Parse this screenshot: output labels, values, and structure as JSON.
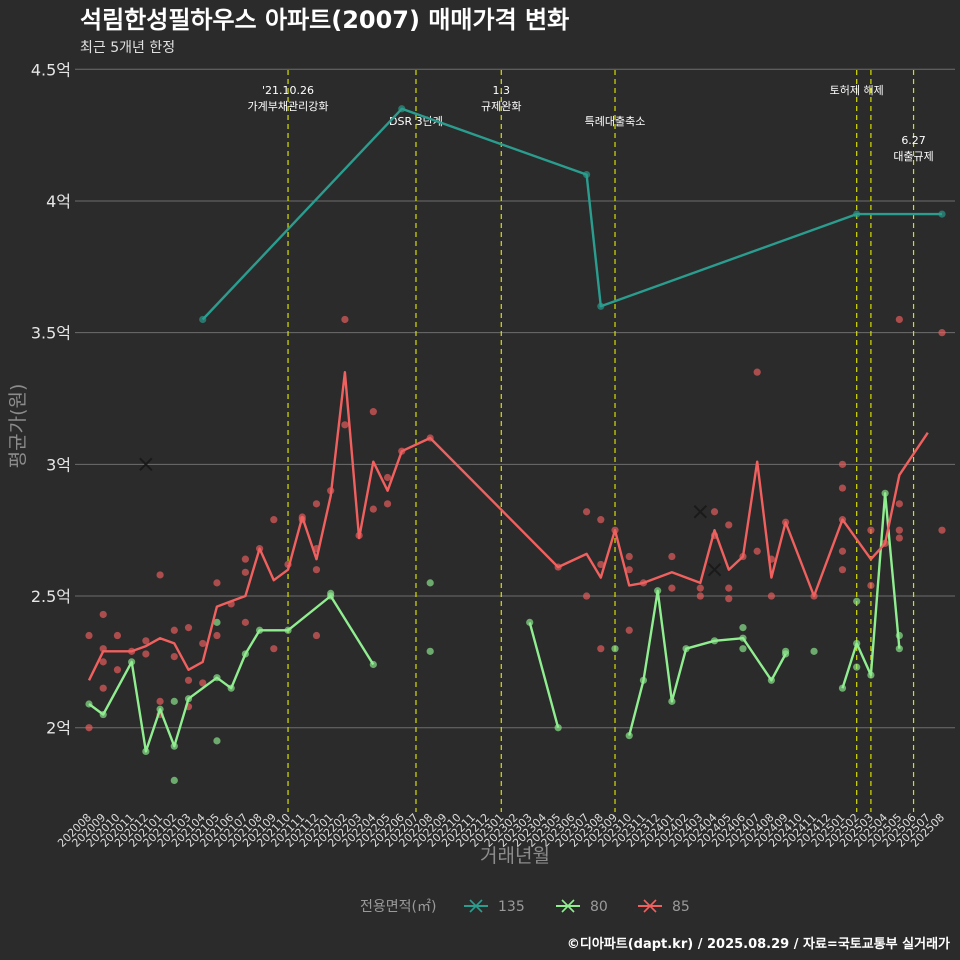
{
  "header": {
    "title": "석림한성필하우스 아파트(2007) 매매가격 변화",
    "subtitle": "최근 5개년 한정"
  },
  "caption": "©디아파트(dapt.kr) / 2025.08.29 / 자료=국토교통부 실거래가",
  "colors": {
    "background": "#2b2b2b",
    "grid": "#6e6e6e",
    "event_line": "#d6e000",
    "s135": "#2a9d8f",
    "s80": "#90ee90",
    "s85": "#f0605f"
  },
  "chart_data": {
    "type": "line",
    "xlabel": "거래년월",
    "ylabel": "평균가(원)",
    "ylim": [
      1.68,
      4.52
    ],
    "yticks": [
      {
        "v": 2.0,
        "label": "2억"
      },
      {
        "v": 2.5,
        "label": "2.5억"
      },
      {
        "v": 3.0,
        "label": "3억"
      },
      {
        "v": 3.5,
        "label": "3.5억"
      },
      {
        "v": 4.0,
        "label": "4억"
      },
      {
        "v": 4.5,
        "label": "4.5억"
      }
    ],
    "categories": [
      "202008",
      "202009",
      "202010",
      "202011",
      "202012",
      "202101",
      "202102",
      "202103",
      "202104",
      "202105",
      "202106",
      "202107",
      "202108",
      "202109",
      "202110",
      "202111",
      "202112",
      "202201",
      "202202",
      "202203",
      "202204",
      "202205",
      "202206",
      "202207",
      "202208",
      "202209",
      "202210",
      "202211",
      "202212",
      "202301",
      "202302",
      "202303",
      "202304",
      "202305",
      "202306",
      "202307",
      "202308",
      "202309",
      "202310",
      "202311",
      "202312",
      "202401",
      "202402",
      "202403",
      "202404",
      "202405",
      "202406",
      "202407",
      "202408",
      "202409",
      "202410",
      "202411",
      "202412",
      "202501",
      "202502",
      "202503",
      "202504",
      "202505",
      "202506",
      "202507",
      "202508"
    ],
    "events": [
      {
        "date": "202110",
        "label": [
          "'21.10.26",
          "가계부채관리강화"
        ],
        "row": 0
      },
      {
        "date": "202207",
        "label": [
          "DSR 3단계"
        ],
        "row": 1
      },
      {
        "date": "202301",
        "label": [
          "1.3",
          "규제완화"
        ],
        "row": 0
      },
      {
        "date": "202309",
        "label": [
          "특례대출축소"
        ],
        "row": 1
      },
      {
        "date": "202502",
        "label": [
          "토허제 해제"
        ],
        "row": 0
      },
      {
        "date": "202503",
        "label": [],
        "row": 0
      },
      {
        "date": "202506",
        "label": [
          "6.27",
          "대출규제"
        ],
        "row": 2
      }
    ],
    "series": [
      {
        "name": "135",
        "color": "#2a9d8f",
        "line": [
          [
            "202104",
            3.55
          ],
          [
            "202206",
            4.35
          ],
          [
            "202307",
            4.1
          ],
          [
            "202308",
            3.6
          ],
          [
            "202502",
            3.95
          ],
          [
            "202508",
            3.95
          ]
        ],
        "points": [
          [
            "202104",
            3.55
          ],
          [
            "202206",
            4.35
          ],
          [
            "202307",
            4.1
          ],
          [
            "202308",
            3.6
          ],
          [
            "202502",
            3.95
          ],
          [
            "202508",
            3.95
          ]
        ],
        "crosses": []
      },
      {
        "name": "80",
        "color": "#90ee90",
        "line": [
          [
            [
              "202008",
              2.09
            ],
            [
              "202009",
              2.05
            ],
            [
              "202011",
              2.25
            ],
            [
              "202012",
              1.91
            ],
            [
              "202101",
              2.07
            ],
            [
              "202102",
              1.93
            ],
            [
              "202103",
              2.11
            ],
            [
              "202105",
              2.19
            ],
            [
              "202106",
              2.15
            ],
            [
              "202107",
              2.28
            ],
            [
              "202108",
              2.37
            ],
            [
              "202110",
              2.37
            ],
            [
              "202201",
              2.5
            ],
            [
              "202204",
              2.24
            ]
          ],
          [
            [
              "202303",
              2.4
            ],
            [
              "202305",
              2.0
            ]
          ],
          [
            [
              "202310",
              1.97
            ],
            [
              "202311",
              2.18
            ],
            [
              "202312",
              2.52
            ],
            [
              "202401",
              2.1
            ],
            [
              "202402",
              2.3
            ],
            [
              "202404",
              2.33
            ],
            [
              "202406",
              2.34
            ],
            [
              "202408",
              2.18
            ],
            [
              "202409",
              2.28
            ]
          ],
          [
            [
              "202501",
              2.15
            ],
            [
              "202502",
              2.32
            ],
            [
              "202503",
              2.2
            ],
            [
              "202504",
              2.89
            ],
            [
              "202505",
              2.3
            ]
          ]
        ],
        "points": [
          [
            "202008",
            2.09
          ],
          [
            "202009",
            2.05
          ],
          [
            "202011",
            2.25
          ],
          [
            "202012",
            1.91
          ],
          [
            "202101",
            2.07
          ],
          [
            "202102",
            1.93
          ],
          [
            "202102",
            2.1
          ],
          [
            "202102",
            1.8
          ],
          [
            "202103",
            2.11
          ],
          [
            "202105",
            2.19
          ],
          [
            "202105",
            2.4
          ],
          [
            "202105",
            1.95
          ],
          [
            "202106",
            2.15
          ],
          [
            "202107",
            2.28
          ],
          [
            "202108",
            2.37
          ],
          [
            "202110",
            2.37
          ],
          [
            "202201",
            2.5
          ],
          [
            "202201",
            2.51
          ],
          [
            "202204",
            2.24
          ],
          [
            "202208",
            2.55
          ],
          [
            "202208",
            2.29
          ],
          [
            "202303",
            2.4
          ],
          [
            "202305",
            2.0
          ],
          [
            "202309",
            2.3
          ],
          [
            "202310",
            1.97
          ],
          [
            "202311",
            2.18
          ],
          [
            "202312",
            2.52
          ],
          [
            "202401",
            2.1
          ],
          [
            "202402",
            2.3
          ],
          [
            "202404",
            2.33
          ],
          [
            "202406",
            2.34
          ],
          [
            "202406",
            2.38
          ],
          [
            "202406",
            2.3
          ],
          [
            "202408",
            2.18
          ],
          [
            "202409",
            2.28
          ],
          [
            "202409",
            2.29
          ],
          [
            "202411",
            2.29
          ],
          [
            "202501",
            2.15
          ],
          [
            "202502",
            2.32
          ],
          [
            "202502",
            2.48
          ],
          [
            "202502",
            2.23
          ],
          [
            "202503",
            2.2
          ],
          [
            "202504",
            2.89
          ],
          [
            "202505",
            2.3
          ],
          [
            "202505",
            2.35
          ]
        ],
        "crosses": []
      },
      {
        "name": "85",
        "color": "#f0605f",
        "line": [
          [
            [
              "202008",
              2.18
            ],
            [
              "202009",
              2.29
            ],
            [
              "202010",
              2.29
            ],
            [
              "202011",
              2.29
            ],
            [
              "202012",
              2.31
            ],
            [
              "202101",
              2.34
            ],
            [
              "202102",
              2.32
            ],
            [
              "202103",
              2.22
            ],
            [
              "202104",
              2.25
            ],
            [
              "202105",
              2.46
            ],
            [
              "202106",
              2.48
            ],
            [
              "202107",
              2.5
            ],
            [
              "202108",
              2.68
            ],
            [
              "202109",
              2.56
            ],
            [
              "202110",
              2.6
            ],
            [
              "202111",
              2.8
            ],
            [
              "202112",
              2.64
            ],
            [
              "202201",
              2.88
            ],
            [
              "202202",
              3.35
            ],
            [
              "202203",
              2.72
            ],
            [
              "202204",
              3.01
            ],
            [
              "202205",
              2.9
            ],
            [
              "202206",
              3.05
            ],
            [
              "202208",
              3.1
            ],
            [
              "202305",
              2.61
            ],
            [
              "202307",
              2.66
            ],
            [
              "202308",
              2.57
            ],
            [
              "202309",
              2.75
            ],
            [
              "202310",
              2.54
            ],
            [
              "202311",
              2.55
            ],
            [
              "202401",
              2.59
            ],
            [
              "202403",
              2.55
            ],
            [
              "202404",
              2.75
            ],
            [
              "202405",
              2.6
            ],
            [
              "202406",
              2.65
            ],
            [
              "202407",
              3.01
            ],
            [
              "202408",
              2.57
            ],
            [
              "202409",
              2.78
            ],
            [
              "202411",
              2.5
            ],
            [
              "202501",
              2.79
            ],
            [
              "202503",
              2.64
            ],
            [
              "202504",
              2.7
            ],
            [
              "202505",
              2.96
            ],
            [
              "202507",
              3.12
            ]
          ]
        ],
        "points": [
          [
            "202008",
            2.35
          ],
          [
            "202008",
            2.0
          ],
          [
            "202009",
            2.43
          ],
          [
            "202009",
            2.3
          ],
          [
            "202009",
            2.25
          ],
          [
            "202009",
            2.15
          ],
          [
            "202010",
            2.35
          ],
          [
            "202010",
            2.22
          ],
          [
            "202011",
            2.29
          ],
          [
            "202012",
            2.33
          ],
          [
            "202012",
            2.28
          ],
          [
            "202101",
            2.58
          ],
          [
            "202101",
            2.1
          ],
          [
            "202101",
            2.05
          ],
          [
            "202102",
            2.37
          ],
          [
            "202102",
            2.27
          ],
          [
            "202103",
            2.38
          ],
          [
            "202103",
            2.18
          ],
          [
            "202103",
            2.08
          ],
          [
            "202104",
            2.17
          ],
          [
            "202104",
            2.32
          ],
          [
            "202105",
            2.55
          ],
          [
            "202105",
            2.35
          ],
          [
            "202106",
            2.47
          ],
          [
            "202107",
            2.64
          ],
          [
            "202107",
            2.59
          ],
          [
            "202107",
            2.4
          ],
          [
            "202108",
            2.68
          ],
          [
            "202109",
            2.79
          ],
          [
            "202109",
            2.3
          ],
          [
            "202110",
            2.62
          ],
          [
            "202111",
            2.8
          ],
          [
            "202111",
            2.79
          ],
          [
            "202112",
            2.85
          ],
          [
            "202112",
            2.68
          ],
          [
            "202112",
            2.6
          ],
          [
            "202112",
            2.35
          ],
          [
            "202201",
            2.9
          ],
          [
            "202202",
            3.55
          ],
          [
            "202202",
            3.15
          ],
          [
            "202203",
            2.73
          ],
          [
            "202204",
            3.2
          ],
          [
            "202204",
            2.83
          ],
          [
            "202205",
            2.95
          ],
          [
            "202205",
            2.85
          ],
          [
            "202206",
            3.05
          ],
          [
            "202208",
            3.1
          ],
          [
            "202305",
            2.61
          ],
          [
            "202307",
            2.82
          ],
          [
            "202307",
            2.5
          ],
          [
            "202308",
            2.79
          ],
          [
            "202308",
            2.62
          ],
          [
            "202308",
            2.3
          ],
          [
            "202309",
            2.75
          ],
          [
            "202310",
            2.65
          ],
          [
            "202310",
            2.6
          ],
          [
            "202310",
            2.37
          ],
          [
            "202311",
            2.55
          ],
          [
            "202401",
            2.65
          ],
          [
            "202401",
            2.53
          ],
          [
            "202403",
            2.53
          ],
          [
            "202403",
            2.5
          ],
          [
            "202404",
            2.82
          ],
          [
            "202404",
            2.73
          ],
          [
            "202405",
            2.77
          ],
          [
            "202405",
            2.53
          ],
          [
            "202405",
            2.49
          ],
          [
            "202406",
            2.65
          ],
          [
            "202407",
            3.35
          ],
          [
            "202407",
            2.67
          ],
          [
            "202408",
            2.64
          ],
          [
            "202408",
            2.5
          ],
          [
            "202409",
            2.78
          ],
          [
            "202411",
            2.5
          ],
          [
            "202501",
            3.0
          ],
          [
            "202501",
            2.91
          ],
          [
            "202501",
            2.79
          ],
          [
            "202501",
            2.67
          ],
          [
            "202501",
            2.6
          ],
          [
            "202503",
            2.75
          ],
          [
            "202503",
            2.54
          ],
          [
            "202504",
            2.7
          ],
          [
            "202505",
            3.55
          ],
          [
            "202505",
            2.85
          ],
          [
            "202505",
            2.75
          ],
          [
            "202505",
            2.72
          ],
          [
            "202508",
            3.5
          ],
          [
            "202508",
            2.75
          ]
        ],
        "crosses": [
          [
            "202012",
            3.0
          ],
          [
            "202403",
            2.82
          ],
          [
            "202404",
            2.6
          ]
        ]
      }
    ],
    "legend": {
      "title": "전용면적(㎡)",
      "items": [
        {
          "label": "135",
          "color": "#2a9d8f"
        },
        {
          "label": "80",
          "color": "#90ee90"
        },
        {
          "label": "85",
          "color": "#f0605f"
        }
      ],
      "position": "bottom-center"
    }
  }
}
